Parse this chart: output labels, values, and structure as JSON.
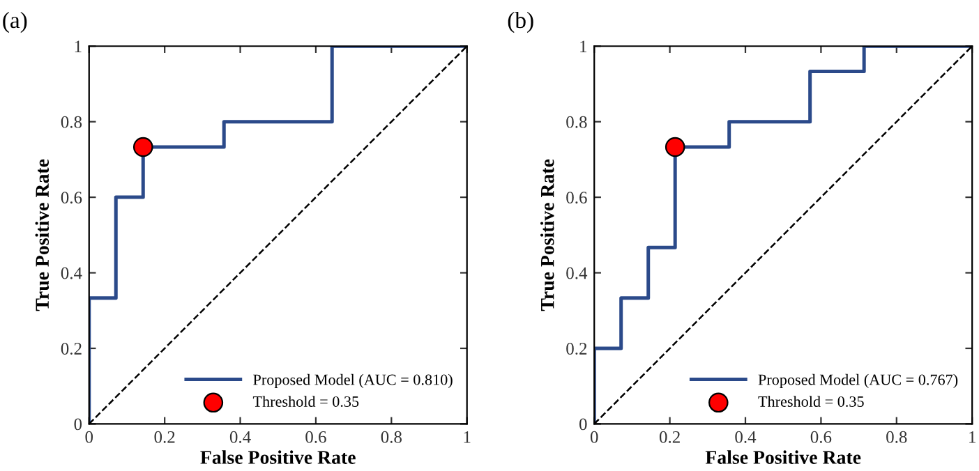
{
  "chart_data": [
    {
      "type": "line",
      "title": "(a)",
      "xlabel": "False Positive Rate",
      "ylabel": "True Positive Rate",
      "xlim": [
        0,
        1
      ],
      "ylim": [
        0,
        1
      ],
      "xticks": [
        0,
        0.2,
        0.4,
        0.6,
        0.8,
        1
      ],
      "yticks": [
        0,
        0.2,
        0.4,
        0.6,
        0.8,
        1
      ],
      "grid": false,
      "legend": "bottom right",
      "series": [
        {
          "name": "Proposed Model (AUC = 0.810)",
          "color": "#2b4a8a",
          "line_style": "solid",
          "marker": "none",
          "x": [
            0,
            0,
            0.071,
            0.071,
            0.143,
            0.143,
            0.357,
            0.357,
            0.643,
            0.643,
            1
          ],
          "values": [
            0,
            0.333,
            0.333,
            0.6,
            0.6,
            0.733,
            0.733,
            0.8,
            0.8,
            1,
            1
          ]
        },
        {
          "name": "Threshold = 0.35",
          "type": "scatter",
          "color": "#ff0000",
          "marker": "circle",
          "x": [
            0.143
          ],
          "values": [
            0.733
          ]
        },
        {
          "type": "line",
          "color": "#000000",
          "line_style": "dashed",
          "marker": "none",
          "x": [
            0,
            1
          ],
          "values": [
            0,
            1
          ]
        }
      ]
    },
    {
      "type": "line",
      "title": "(b)",
      "xlabel": "False Positive Rate",
      "ylabel": "True Positive Rate",
      "xlim": [
        0,
        1
      ],
      "ylim": [
        0,
        1
      ],
      "xticks": [
        0,
        0.2,
        0.4,
        0.6,
        0.8,
        1
      ],
      "yticks": [
        0,
        0.2,
        0.4,
        0.6,
        0.8,
        1
      ],
      "grid": false,
      "legend": "bottom right",
      "series": [
        {
          "name": "Proposed Model (AUC = 0.767)",
          "color": "#2b4a8a",
          "line_style": "solid",
          "marker": "none",
          "x": [
            0,
            0,
            0.071,
            0.071,
            0.143,
            0.143,
            0.214,
            0.214,
            0.357,
            0.357,
            0.571,
            0.571,
            0.714,
            0.714,
            1
          ],
          "values": [
            0,
            0.2,
            0.2,
            0.333,
            0.333,
            0.467,
            0.467,
            0.733,
            0.733,
            0.8,
            0.8,
            0.933,
            0.933,
            1,
            1
          ]
        },
        {
          "name": "Threshold = 0.35",
          "type": "scatter",
          "color": "#ff0000",
          "marker": "circle",
          "x": [
            0.214
          ],
          "values": [
            0.733
          ]
        },
        {
          "type": "line",
          "color": "#000000",
          "line_style": "dashed",
          "marker": "none",
          "x": [
            0,
            1
          ],
          "values": [
            0,
            1
          ]
        }
      ]
    }
  ]
}
